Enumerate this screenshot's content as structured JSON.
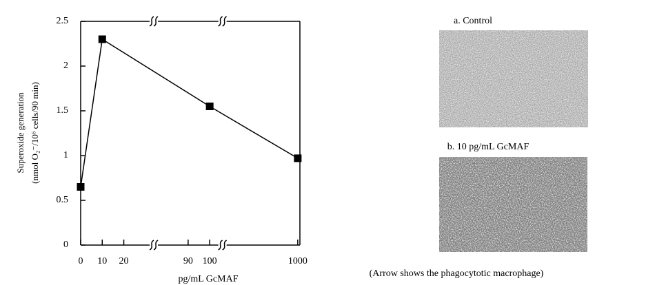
{
  "chart_data": {
    "type": "line",
    "x_label": "pg/mL GcMAF",
    "y_label": [
      "Superoxide generation",
      "(nmol O₂⁻/10⁶ cells/90 min)"
    ],
    "x": [
      0,
      10,
      100,
      1000
    ],
    "values": [
      0.65,
      2.3,
      1.55,
      0.97
    ],
    "color": "#000000",
    "xlim": [
      [
        0,
        32
      ],
      [
        76,
        104
      ],
      [
        967,
        1001
      ]
    ],
    "xticks": [
      0,
      10,
      20,
      90,
      100,
      1000
    ],
    "ylim": [
      0,
      2.5
    ],
    "yticks": [
      0,
      0.5,
      1,
      1.5,
      2,
      2.5
    ]
  },
  "panels": [
    {
      "label": "a. Control"
    },
    {
      "label": "b. 10 pg/mL GcMAF"
    }
  ],
  "caption": "(Arrow shows the phagocytotic macrophage)"
}
